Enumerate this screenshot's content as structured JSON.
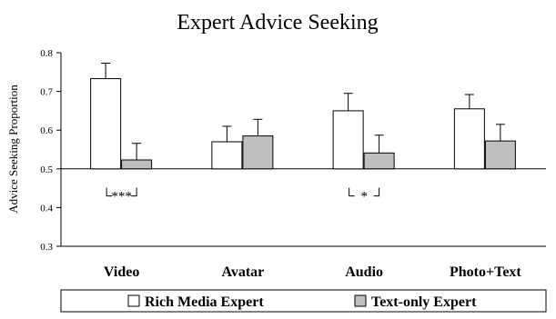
{
  "chart_data": {
    "type": "bar",
    "title": "Expert Advice Seeking",
    "xlabel": "",
    "ylabel": "Advice Seeking Proportion",
    "ylim": [
      0.3,
      0.8
    ],
    "yticks": [
      "0.3",
      "0.4",
      "0.5",
      "0.6",
      "0.7",
      "0.8"
    ],
    "baseline": 0.5,
    "grid": false,
    "legend_position": "bottom",
    "categories": [
      "Video",
      "Avatar",
      "Audio",
      "Photo+Text"
    ],
    "series": [
      {
        "name": "Rich Media Expert",
        "color": "#ffffff",
        "values": [
          0.733,
          0.57,
          0.65,
          0.655
        ],
        "error_upper": [
          0.773,
          0.61,
          0.695,
          0.692
        ]
      },
      {
        "name": "Text-only Expert",
        "color": "#bfbfbf",
        "values": [
          0.523,
          0.585,
          0.541,
          0.572
        ],
        "error_upper": [
          0.566,
          0.628,
          0.587,
          0.615
        ]
      }
    ],
    "annotations": [
      {
        "category": "Video",
        "text": "***",
        "y": 0.43
      },
      {
        "category": "Audio",
        "text": "*",
        "y": 0.43
      }
    ]
  }
}
